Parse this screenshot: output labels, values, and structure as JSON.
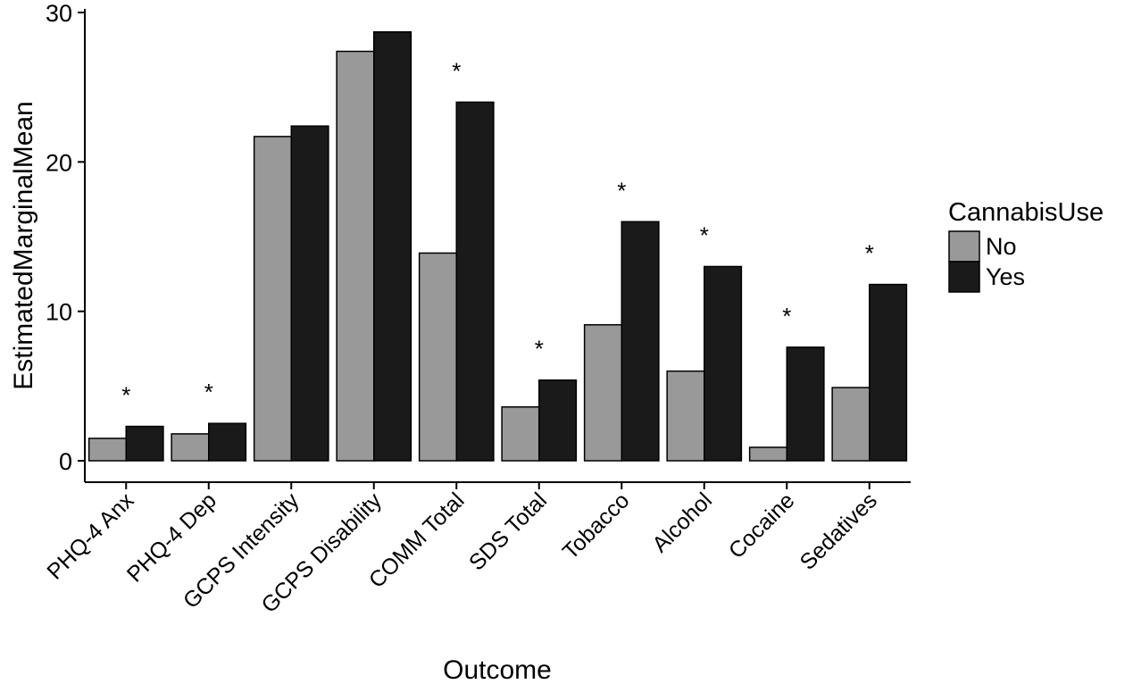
{
  "chart_data": {
    "type": "bar",
    "xlabel": "Outcome",
    "ylabel": "EstimatedMarginalMean",
    "ylim": [
      0,
      30
    ],
    "yticks": [
      0,
      10,
      20,
      30
    ],
    "categories": [
      "PHQ-4 Anx",
      "PHQ-4 Dep",
      "GCPS Intensity",
      "GCPS Disability",
      "COMM Total",
      "SDS Total",
      "Tobacco",
      "Alcohol",
      "Cocaine",
      "Sedatives"
    ],
    "series": [
      {
        "name": "No",
        "color": "#999999",
        "values": [
          1.5,
          1.8,
          21.7,
          27.4,
          13.9,
          3.6,
          9.1,
          6.0,
          0.9,
          4.9
        ]
      },
      {
        "name": "Yes",
        "color": "#1a1a1a",
        "values": [
          2.3,
          2.5,
          22.4,
          28.7,
          24.0,
          5.4,
          16.0,
          13.0,
          7.6,
          11.8
        ]
      }
    ],
    "significance_marker": "*",
    "significant": [
      true,
      true,
      false,
      false,
      true,
      true,
      true,
      true,
      true,
      true
    ],
    "legend": {
      "title": "CannabisUse",
      "position": "right"
    },
    "grid": false
  }
}
